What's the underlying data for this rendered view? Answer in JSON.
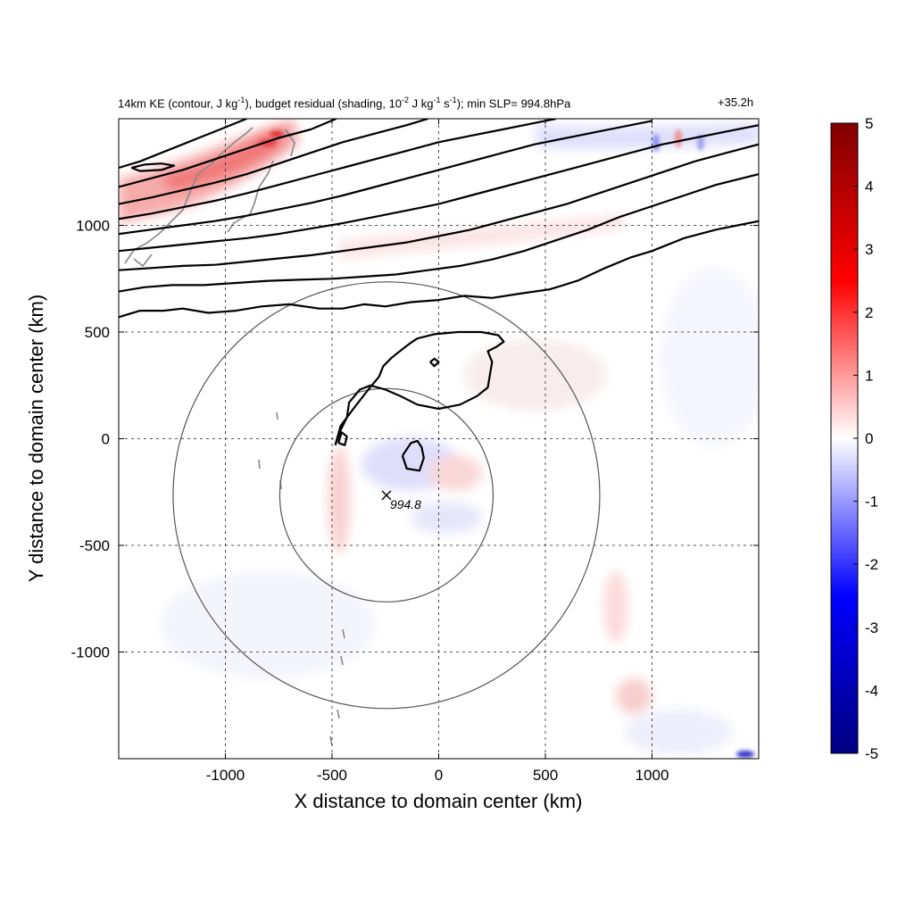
{
  "header": {
    "title_parts": [
      {
        "t": "14km KE (contour, J kg"
      },
      {
        "t": "-1",
        "sup": true
      },
      {
        "t": "), budget residual (shading, 10"
      },
      {
        "t": "-2",
        "sup": true
      },
      {
        "t": " J kg"
      },
      {
        "t": "-1",
        "sup": true
      },
      {
        "t": " s"
      },
      {
        "t": "-1",
        "sup": true
      },
      {
        "t": "); min SLP= 994.8hPa"
      }
    ],
    "forecast_time": "+35.2h"
  },
  "chart_data": {
    "type": "heatmap",
    "xlabel": "X distance to domain center (km)",
    "ylabel": "Y distance to domain center (km)",
    "xlim": [
      -1500,
      1500
    ],
    "ylim": [
      -1500,
      1500
    ],
    "xticks": [
      -1000,
      -500,
      0,
      500,
      1000
    ],
    "yticks": [
      -1000,
      -500,
      0,
      500,
      1000
    ],
    "xtick_labels": [
      "-1000",
      "-500",
      "0",
      "500",
      "1000"
    ],
    "ytick_labels": [
      "-1000",
      "-500",
      "0",
      "500",
      "1000"
    ],
    "grid": "dashed",
    "colorbar": {
      "min": -5,
      "max": 5,
      "ticks": [
        5,
        4,
        3,
        2,
        1,
        0,
        -1,
        -2,
        -3,
        -4,
        -5
      ],
      "tick_labels": [
        "5",
        "4",
        "3",
        "2",
        "1",
        "0",
        "-1",
        "-2",
        "-3",
        "-4",
        "-5"
      ],
      "colormap": [
        "#000080",
        "#0000ff",
        "#ffffff",
        "#ff0000",
        "#800000"
      ]
    },
    "storm_center": {
      "x": -245,
      "y": -265,
      "label": "994.8"
    },
    "range_rings": [
      {
        "x": -245,
        "y": -265,
        "radius": 500
      },
      {
        "x": -245,
        "y": -265,
        "radius": 1000
      }
    ],
    "ke_contours": [
      [
        [
          -1500,
          570
        ],
        [
          -1400,
          600
        ],
        [
          -1290,
          600
        ],
        [
          -1200,
          610
        ],
        [
          -1080,
          590
        ],
        [
          -950,
          600
        ],
        [
          -830,
          620
        ],
        [
          -700,
          630
        ],
        [
          -560,
          610
        ],
        [
          -450,
          610
        ],
        [
          -350,
          630
        ],
        [
          -250,
          620
        ],
        [
          -130,
          640
        ],
        [
          0,
          650
        ],
        [
          120,
          670
        ],
        [
          250,
          660
        ],
        [
          380,
          680
        ],
        [
          520,
          700
        ],
        [
          650,
          740
        ],
        [
          780,
          800
        ],
        [
          900,
          850
        ],
        [
          1000,
          880
        ],
        [
          1150,
          940
        ],
        [
          1300,
          980
        ],
        [
          1500,
          1020
        ]
      ],
      [
        [
          -1500,
          690
        ],
        [
          -1380,
          710
        ],
        [
          -1250,
          720
        ],
        [
          -1100,
          720
        ],
        [
          -950,
          730
        ],
        [
          -800,
          740
        ],
        [
          -650,
          745
        ],
        [
          -500,
          750
        ],
        [
          -350,
          760
        ],
        [
          -200,
          770
        ],
        [
          -50,
          790
        ],
        [
          100,
          810
        ],
        [
          250,
          840
        ],
        [
          400,
          880
        ],
        [
          550,
          930
        ],
        [
          700,
          980
        ],
        [
          850,
          1040
        ],
        [
          1000,
          1090
        ],
        [
          1150,
          1140
        ],
        [
          1300,
          1190
        ],
        [
          1500,
          1240
        ]
      ],
      [
        [
          -1500,
          790
        ],
        [
          -1350,
          800
        ],
        [
          -1200,
          810
        ],
        [
          -1050,
          815
        ],
        [
          -900,
          830
        ],
        [
          -750,
          845
        ],
        [
          -600,
          860
        ],
        [
          -450,
          880
        ],
        [
          -300,
          900
        ],
        [
          -150,
          920
        ],
        [
          0,
          950
        ],
        [
          150,
          980
        ],
        [
          300,
          1020
        ],
        [
          450,
          1060
        ],
        [
          600,
          1100
        ],
        [
          750,
          1150
        ],
        [
          900,
          1200
        ],
        [
          1050,
          1250
        ],
        [
          1200,
          1300
        ],
        [
          1350,
          1340
        ],
        [
          1500,
          1380
        ]
      ],
      [
        [
          -1500,
          880
        ],
        [
          -1350,
          895
        ],
        [
          -1200,
          910
        ],
        [
          -1050,
          925
        ],
        [
          -900,
          940
        ],
        [
          -750,
          960
        ],
        [
          -600,
          985
        ],
        [
          -450,
          1010
        ],
        [
          -300,
          1040
        ],
        [
          -150,
          1070
        ],
        [
          0,
          1100
        ],
        [
          150,
          1140
        ],
        [
          300,
          1180
        ],
        [
          450,
          1220
        ],
        [
          600,
          1260
        ],
        [
          750,
          1300
        ],
        [
          900,
          1340
        ],
        [
          1050,
          1380
        ],
        [
          1200,
          1410
        ],
        [
          1350,
          1440
        ],
        [
          1500,
          1470
        ]
      ],
      [
        [
          -1500,
          960
        ],
        [
          -1350,
          980
        ],
        [
          -1200,
          1000
        ],
        [
          -1050,
          1020
        ],
        [
          -900,
          1045
        ],
        [
          -750,
          1075
        ],
        [
          -600,
          1105
        ],
        [
          -450,
          1140
        ],
        [
          -300,
          1180
        ],
        [
          -150,
          1220
        ],
        [
          0,
          1260
        ],
        [
          150,
          1300
        ],
        [
          300,
          1340
        ],
        [
          450,
          1380
        ],
        [
          600,
          1410
        ],
        [
          750,
          1440
        ],
        [
          900,
          1470
        ],
        [
          1000,
          1490
        ]
      ],
      [
        [
          -1500,
          1030
        ],
        [
          -1350,
          1055
        ],
        [
          -1200,
          1085
        ],
        [
          -1050,
          1115
        ],
        [
          -900,
          1150
        ],
        [
          -750,
          1190
        ],
        [
          -600,
          1230
        ],
        [
          -450,
          1270
        ],
        [
          -300,
          1310
        ],
        [
          -150,
          1350
        ],
        [
          0,
          1390
        ],
        [
          150,
          1420
        ],
        [
          300,
          1450
        ],
        [
          450,
          1480
        ],
        [
          550,
          1500
        ]
      ],
      [
        [
          -1500,
          1100
        ],
        [
          -1350,
          1130
        ],
        [
          -1200,
          1165
        ],
        [
          -1050,
          1200
        ],
        [
          -900,
          1240
        ],
        [
          -750,
          1290
        ],
        [
          -600,
          1340
        ],
        [
          -450,
          1390
        ],
        [
          -300,
          1430
        ],
        [
          -150,
          1470
        ],
        [
          -50,
          1500
        ]
      ],
      [
        [
          -1500,
          1180
        ],
        [
          -1350,
          1220
        ],
        [
          -1200,
          1260
        ],
        [
          -1050,
          1310
        ],
        [
          -900,
          1360
        ],
        [
          -750,
          1410
        ],
        [
          -600,
          1450
        ],
        [
          -480,
          1500
        ]
      ],
      [
        [
          -1500,
          1270
        ],
        [
          -1400,
          1300
        ],
        [
          -1300,
          1340
        ],
        [
          -1200,
          1380
        ],
        [
          -1100,
          1420
        ],
        [
          -1000,
          1460
        ],
        [
          -900,
          1500
        ]
      ],
      [
        [
          -1440,
          1270
        ],
        [
          -1380,
          1285
        ],
        [
          -1300,
          1290
        ],
        [
          -1240,
          1280
        ],
        [
          -1300,
          1260
        ],
        [
          -1400,
          1255
        ],
        [
          -1440,
          1270
        ]
      ],
      [
        [
          -485,
          -30
        ],
        [
          -460,
          60
        ],
        [
          -400,
          140
        ],
        [
          -330,
          230
        ],
        [
          -280,
          290
        ],
        [
          -260,
          340
        ],
        [
          -220,
          380
        ],
        [
          -170,
          420
        ],
        [
          -130,
          450
        ],
        [
          -100,
          470
        ],
        [
          -20,
          490
        ],
        [
          90,
          500
        ],
        [
          200,
          500
        ],
        [
          280,
          485
        ],
        [
          305,
          455
        ],
        [
          270,
          430
        ],
        [
          230,
          410
        ],
        [
          250,
          360
        ],
        [
          240,
          300
        ],
        [
          230,
          240
        ],
        [
          180,
          200
        ],
        [
          100,
          160
        ],
        [
          0,
          140
        ],
        [
          -100,
          160
        ],
        [
          -180,
          200
        ],
        [
          -250,
          230
        ],
        [
          -320,
          250
        ],
        [
          -370,
          230
        ],
        [
          -420,
          170
        ],
        [
          -430,
          100
        ],
        [
          -460,
          40
        ],
        [
          -485,
          -30
        ]
      ],
      [
        [
          -470,
          -20
        ],
        [
          -455,
          30
        ],
        [
          -430,
          10
        ],
        [
          -440,
          -30
        ],
        [
          -470,
          -20
        ]
      ],
      [
        [
          -170,
          -80
        ],
        [
          -130,
          -20
        ],
        [
          -100,
          -10
        ],
        [
          -80,
          -40
        ],
        [
          -70,
          -90
        ],
        [
          -90,
          -150
        ],
        [
          -150,
          -140
        ],
        [
          -170,
          -80
        ]
      ],
      [
        [
          -40,
          360
        ],
        [
          -20,
          375
        ],
        [
          0,
          360
        ],
        [
          -20,
          340
        ],
        [
          -40,
          360
        ]
      ]
    ]
  }
}
